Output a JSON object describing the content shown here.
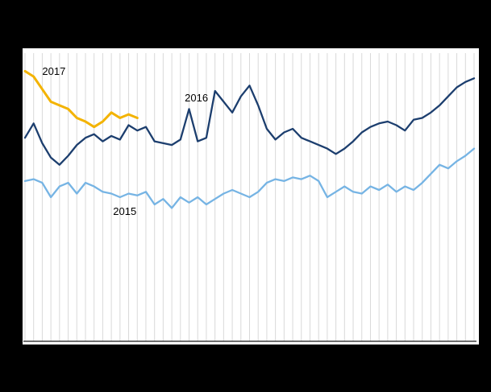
{
  "page": {
    "background": "#000000",
    "plot_background": "#ffffff",
    "grid_color": "#d9d9d9",
    "axis_color": "#404040"
  },
  "chart_data": {
    "type": "line",
    "title": "",
    "x": {
      "unit": "week",
      "count": 53
    },
    "ylim": [
      0,
      160
    ],
    "grid": "vertical",
    "legend": "inline-annotations",
    "series": [
      {
        "name": "2015",
        "color": "#76b4e4",
        "width": 2.3,
        "values": [
          89,
          90,
          88,
          80,
          86,
          88,
          82,
          88,
          86,
          83,
          82,
          80,
          82,
          81,
          83,
          76,
          79,
          74,
          80,
          77,
          80,
          76,
          79,
          82,
          84,
          82,
          80,
          83,
          88,
          90,
          89,
          91,
          90,
          92,
          89,
          80,
          83,
          86,
          83,
          82,
          86,
          84,
          87,
          83,
          86,
          84,
          88,
          93,
          98,
          96,
          100,
          103,
          107
        ]
      },
      {
        "name": "2016",
        "color": "#1c3e6e",
        "width": 2.3,
        "values": [
          113,
          121,
          110,
          102,
          98,
          103,
          109,
          113,
          115,
          111,
          114,
          112,
          120,
          117,
          119,
          111,
          110,
          109,
          112,
          129,
          111,
          113,
          139,
          133,
          127,
          136,
          142,
          131,
          118,
          112,
          116,
          118,
          113,
          111,
          109,
          107,
          104,
          107,
          111,
          116,
          119,
          121,
          122,
          120,
          117,
          123,
          124,
          127,
          131,
          136,
          141,
          144,
          146
        ]
      },
      {
        "name": "2017",
        "color": "#f3b300",
        "width": 3,
        "values": [
          150,
          147,
          140,
          133,
          131,
          129,
          124,
          122,
          119,
          122,
          127,
          124,
          126,
          124
        ]
      }
    ],
    "annotations": [
      {
        "label": "2017",
        "week": 3.0,
        "value": 153
      },
      {
        "label": "2016",
        "week": 19.5,
        "value": 138
      },
      {
        "label": "2015",
        "week": 11.2,
        "value": 75
      }
    ]
  }
}
